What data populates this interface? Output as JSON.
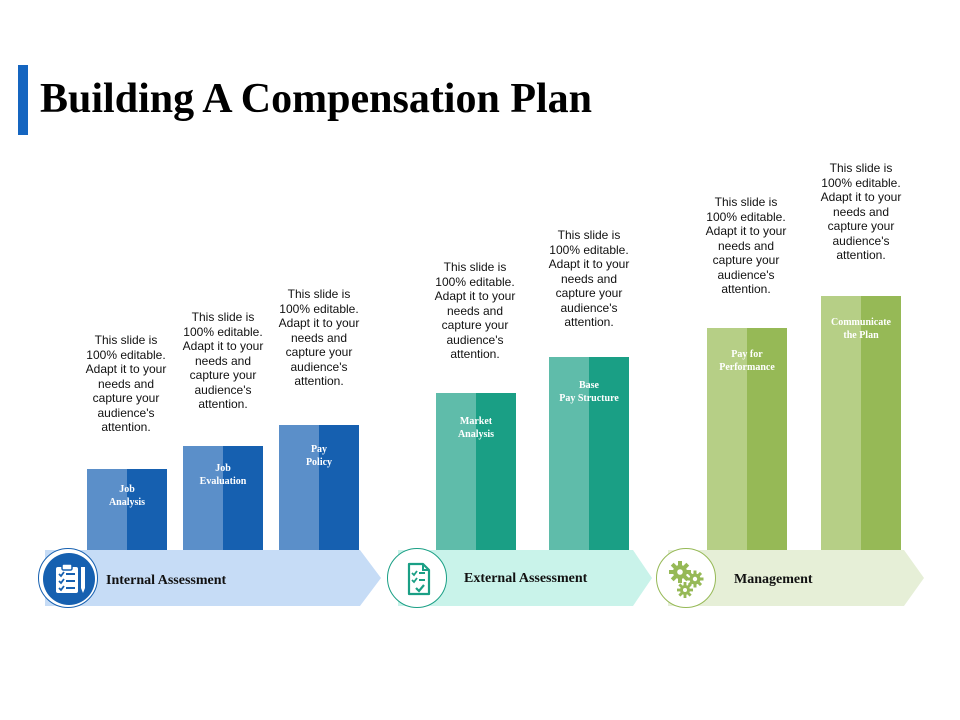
{
  "title": "Building A Compensation Plan",
  "colors": {
    "accent": "#1565c0",
    "blue_light": "#5b8fc9",
    "blue_dark": "#1660b0",
    "blue_band": "#c6dcf6",
    "teal_light": "#5fbcaa",
    "teal_dark": "#1a9f85",
    "teal_band": "#c9f3ea",
    "green_light": "#b6cf86",
    "green_dark": "#96b956",
    "green_band": "#e6efd7"
  },
  "description": "This slide is 100% editable. Adapt it to your needs and capture your audience's attention.",
  "groups": [
    {
      "label": "Internal Assessment",
      "icon": "clipboard-checklist-icon",
      "bars": [
        "Job Analysis",
        "Job Evaluation",
        "Pay Policy"
      ]
    },
    {
      "label": "External Assessment",
      "icon": "document-check-icon",
      "bars": [
        "Market Analysis",
        "Base Pay Structure"
      ]
    },
    {
      "label": "Management",
      "icon": "gears-icon",
      "bars": [
        "Pay for Performance",
        "Communicate the Plan"
      ]
    }
  ],
  "bars": [
    {
      "label_lines": [
        "Job",
        "Analysis"
      ],
      "desc": "This slide is 100% editable. Adapt it to your needs and capture your audience's attention."
    },
    {
      "label_lines": [
        "Job",
        "Evaluation"
      ],
      "desc": "This slide is 100% editable. Adapt it to your needs and capture your audience's attention."
    },
    {
      "label_lines": [
        "Pay",
        "Policy"
      ],
      "desc": "This slide is 100% editable. Adapt it to your needs and capture your audience's attention."
    },
    {
      "label_lines": [
        "Market",
        "Analysis"
      ],
      "desc": "This slide is 100% editable. Adapt it to your needs and capture your audience's attention."
    },
    {
      "label_lines": [
        "Base",
        "Pay Structure"
      ],
      "desc": "This slide is 100% editable. Adapt it to your needs and capture your audience's attention."
    },
    {
      "label_lines": [
        "Pay for",
        "Performance"
      ],
      "desc": "This slide is 100% editable. Adapt it to your needs and capture your audience's attention."
    },
    {
      "label_lines": [
        "Communicate",
        "the Plan"
      ],
      "desc": "This slide is 100% editable. Adapt it to your needs and capture your audience's attention."
    }
  ]
}
